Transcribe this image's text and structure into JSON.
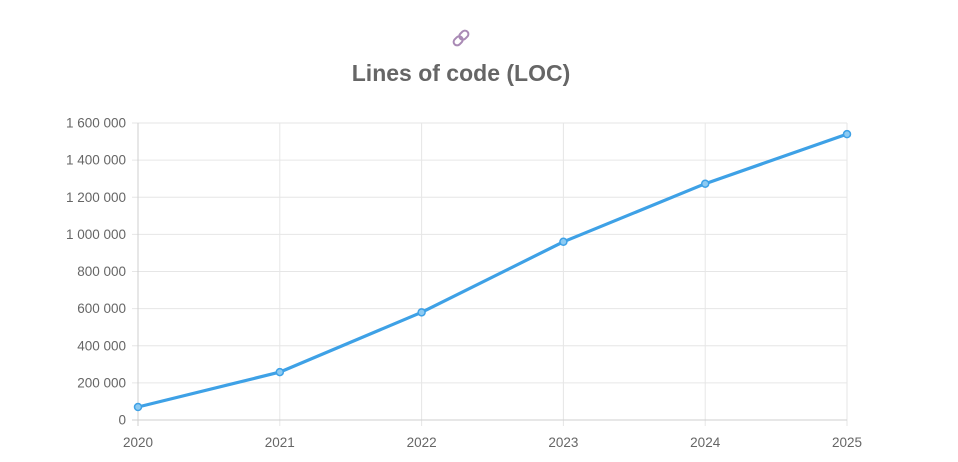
{
  "header": {
    "link_icon": "link-icon",
    "title": "Lines of code (LOC)"
  },
  "chart_data": {
    "type": "line",
    "title": "Lines of code (LOC)",
    "xlabel": "",
    "ylabel": "",
    "categories": [
      "2020",
      "2021",
      "2022",
      "2023",
      "2024",
      "2025"
    ],
    "series": [
      {
        "values": [
          70000,
          258000,
          580000,
          960000,
          1273000,
          1540000
        ],
        "color": "#3ea1e6"
      }
    ],
    "ylim": [
      0,
      1600000
    ],
    "yticks": [
      "0",
      "200 000",
      "400 000",
      "600 000",
      "800 000",
      "1 000 000",
      "1 200 000",
      "1 400 000",
      "1 600 000"
    ],
    "grid": true,
    "legend": "none"
  }
}
